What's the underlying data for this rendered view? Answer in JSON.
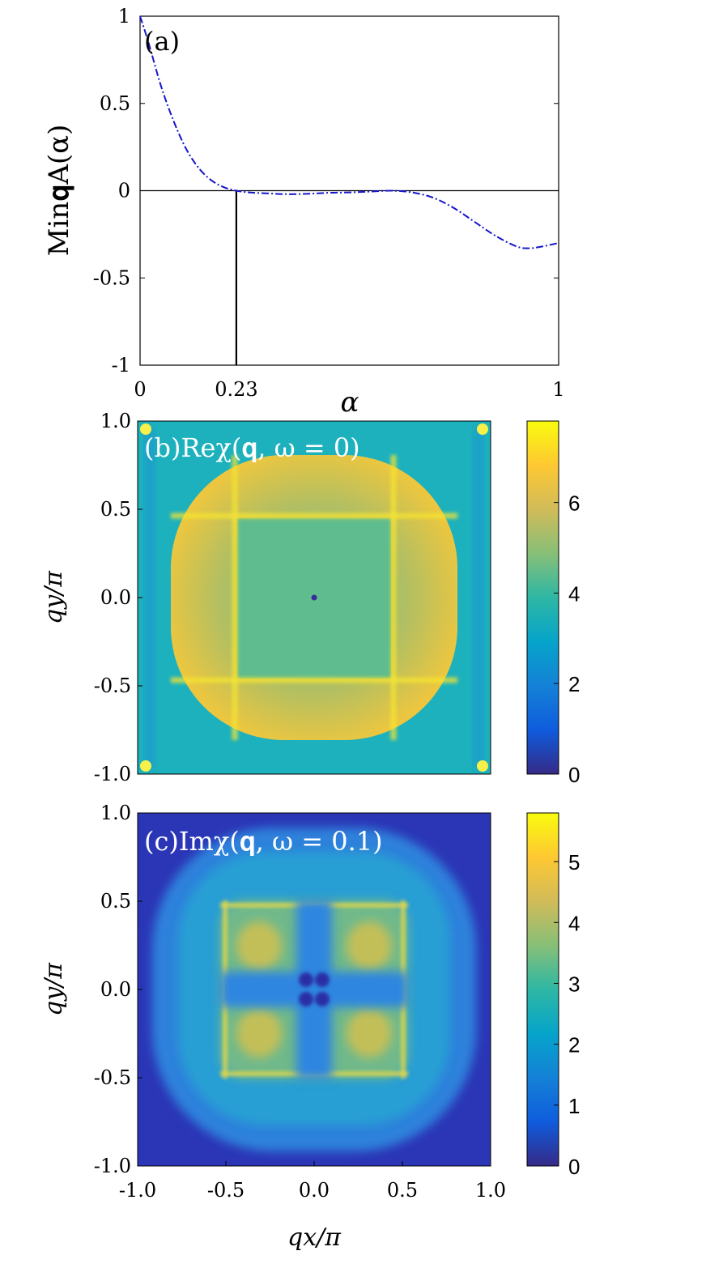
{
  "chart_data": [
    {
      "panel": "(a)",
      "type": "line",
      "ylabel": "Min𝐪A(α)",
      "xlabel": "α",
      "xlim": [
        0,
        1
      ],
      "ylim": [
        -1,
        1
      ],
      "xticks": [
        "0",
        "0.23",
        "1"
      ],
      "yticks": [
        "1",
        "0.5",
        "0",
        "-0.5",
        "-1"
      ],
      "annotations": [
        {
          "type": "horizontal-line",
          "y": 0
        },
        {
          "type": "vertical-line",
          "x": 0.23,
          "from_y": -1,
          "to_y": 0
        }
      ],
      "series": [
        {
          "color": "#1515cc",
          "style": "dash-dot",
          "x": [
            0.0,
            0.02,
            0.05,
            0.08,
            0.11,
            0.14,
            0.17,
            0.2,
            0.23,
            0.26,
            0.3,
            0.35,
            0.4,
            0.45,
            0.5,
            0.55,
            0.6,
            0.65,
            0.7,
            0.75,
            0.8,
            0.85,
            0.9,
            0.93,
            0.96,
            1.0
          ],
          "y": [
            1.0,
            0.85,
            0.6,
            0.4,
            0.24,
            0.13,
            0.06,
            0.02,
            0.0,
            -0.01,
            -0.015,
            -0.02,
            -0.018,
            -0.012,
            -0.01,
            -0.005,
            0.0,
            -0.01,
            -0.04,
            -0.1,
            -0.18,
            -0.26,
            -0.32,
            -0.33,
            -0.32,
            -0.3
          ]
        }
      ]
    },
    {
      "panel": "(b)",
      "type": "heatmap",
      "title": "(b)Reχ(𝐪, ω = 0)",
      "ylabel": "qy/π",
      "xlim": [
        -1,
        1
      ],
      "ylim": [
        -1,
        1
      ],
      "yticks": [
        "1.0",
        "0.5",
        "0.0",
        "-0.5",
        "-1.0"
      ],
      "colorbar": {
        "min": 0,
        "max": 7.8,
        "ticks": [
          "6",
          "4",
          "2",
          "0"
        ],
        "colormap": "parula"
      },
      "regions": [
        {
          "name": "background",
          "value": 4.3
        },
        {
          "name": "rounded-square-interior",
          "extent": 0.8,
          "value": 6.9
        },
        {
          "name": "inner-square",
          "extent": 0.45,
          "value": 5.6
        },
        {
          "name": "ridge-lines",
          "position": 0.47,
          "value": 7.6
        },
        {
          "name": "center-point",
          "value": 0
        }
      ]
    },
    {
      "panel": "(c)",
      "type": "heatmap",
      "title": "(c)Imχ(𝐪, ω = 0.1)",
      "xlabel": "qx/π",
      "ylabel": "qy/π",
      "xlim": [
        -1,
        1
      ],
      "ylim": [
        -1,
        1
      ],
      "xticks": [
        "-1.0",
        "-0.5",
        "0.0",
        "0.5",
        "1.0"
      ],
      "yticks": [
        "1.0",
        "0.5",
        "0.0",
        "-0.5",
        "-1.0"
      ],
      "colorbar": {
        "min": 0,
        "max": 5.8,
        "ticks": [
          "5",
          "4",
          "3",
          "2",
          "1",
          "0"
        ],
        "colormap": "parula"
      },
      "regions": [
        {
          "name": "corners",
          "value": 0.5
        },
        {
          "name": "outer-rounded-square",
          "extent": 0.9,
          "value": 1.6
        },
        {
          "name": "inner-square",
          "extent": 0.5,
          "value": 3.8
        },
        {
          "name": "ridge-lines",
          "position": 0.47,
          "value": 4.8
        },
        {
          "name": "center-cross",
          "value": 2.2
        },
        {
          "name": "center-dip",
          "value": 0.2
        }
      ]
    }
  ]
}
